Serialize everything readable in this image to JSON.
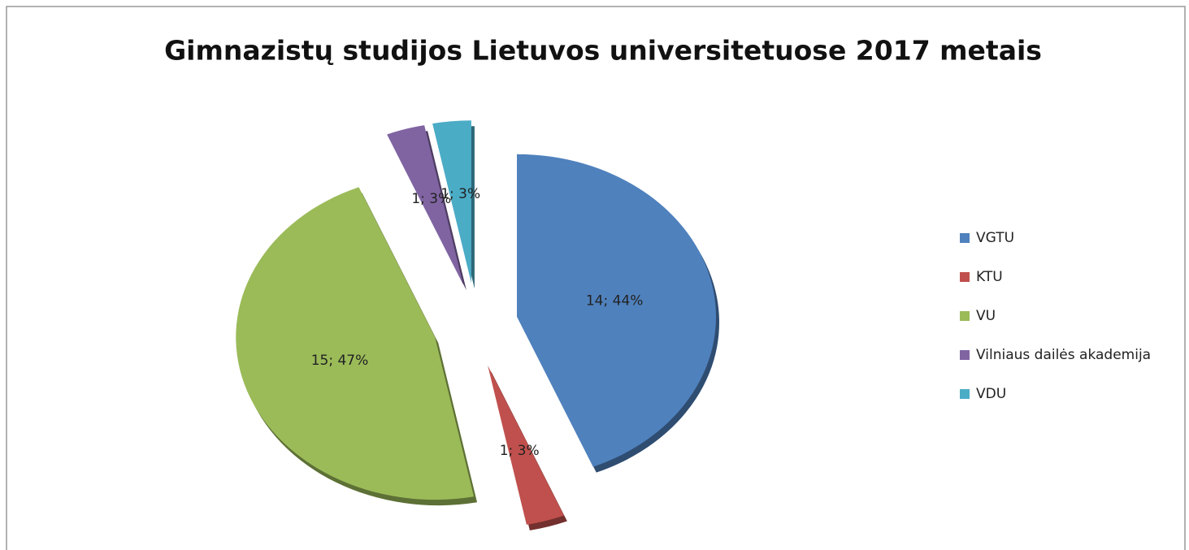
{
  "chart_data": {
    "type": "pie",
    "title": "Gimnazistų studijos Lietuvos universitetuose 2017 metais",
    "categories": [
      "VGTU",
      "KTU",
      "VU",
      "Vilniaus dailės akademija",
      "VDU"
    ],
    "values": [
      14,
      1,
      15,
      1,
      1
    ],
    "value_labels": [
      "14; 44%",
      "1; 3%",
      "15; 47%",
      "1; 3%",
      "1; 3%"
    ],
    "colors": [
      "#4f81bd",
      "#c0504d",
      "#9bbb59",
      "#8064a2",
      "#4bacc6"
    ],
    "legend": "right"
  }
}
